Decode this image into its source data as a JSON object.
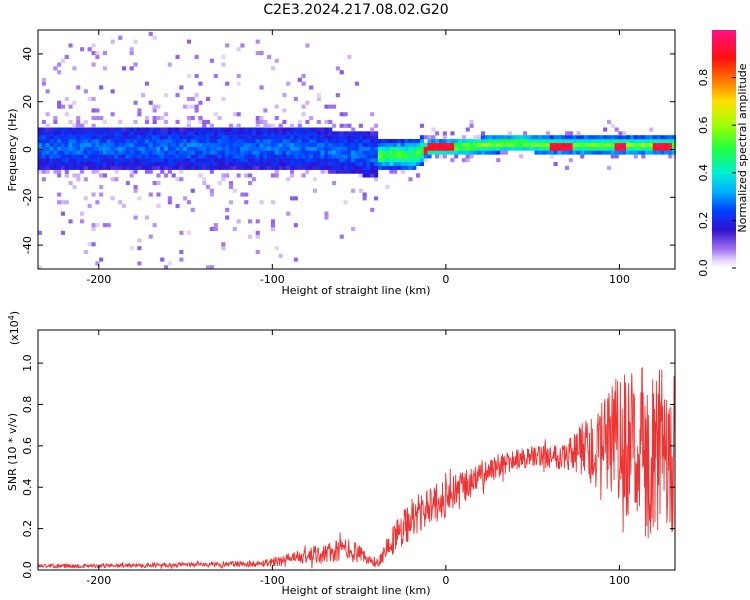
{
  "title": "C2E3.2024.217.08.02.G20",
  "chart_data": [
    {
      "type": "heatmap",
      "xlabel": "Height of straight line (km)",
      "ylabel": "Frequency (Hz)",
      "xlim": [
        -235,
        132
      ],
      "ylim": [
        -50,
        50
      ],
      "xticks": [
        -200,
        -100,
        0,
        100
      ],
      "xtick_labels": [
        "-200",
        "-100",
        "0",
        "100"
      ],
      "yticks": [
        -40,
        -20,
        0,
        20,
        40
      ],
      "ytick_labels": [
        "-40",
        "-20",
        "0",
        "20",
        "40"
      ],
      "colorbar": {
        "label": "Normalized spectral amplitude",
        "range": [
          0,
          1
        ],
        "ticks": [
          0,
          0.2,
          0.4,
          0.6,
          0.8
        ],
        "tick_labels": [
          "0.0",
          "0.2",
          "0.4",
          "0.6",
          "0.8"
        ]
      },
      "band_center_hz": [
        [
          -235,
          0
        ],
        [
          -100,
          0
        ],
        [
          -80,
          0
        ],
        [
          -60,
          -2
        ],
        [
          -40,
          -3
        ],
        [
          -20,
          -3
        ],
        [
          -10,
          0
        ],
        [
          0,
          0
        ],
        [
          20,
          1
        ],
        [
          40,
          2
        ],
        [
          60,
          1
        ],
        [
          80,
          1
        ],
        [
          100,
          1
        ],
        [
          132,
          1
        ]
      ],
      "peak_segments_km": [
        [
          -13,
          3
        ],
        [
          58,
          72
        ],
        [
          95,
          102
        ],
        [
          118,
          128
        ]
      ]
    },
    {
      "type": "line",
      "xlabel": "Height of straight line (km)",
      "ylabel": "SNR (10 * v/v)",
      "y_multiplier": "(x10",
      "y_multiplier_exp": "4",
      "y_multiplier_close": ")",
      "xlim": [
        -235,
        132
      ],
      "ylim": [
        0,
        1.16
      ],
      "xticks": [
        -200,
        -100,
        0,
        100
      ],
      "xtick_labels": [
        "-200",
        "-100",
        "0",
        "100"
      ],
      "yticks": [
        0,
        0.2,
        0.4,
        0.6,
        0.8,
        1.0
      ],
      "ytick_labels": [
        "0.0",
        "0.2",
        "0.4",
        "0.6",
        "0.8",
        "1.0"
      ],
      "series": [
        {
          "color": "#ee3333",
          "x": [
            -235,
            -200,
            -150,
            -110,
            -90,
            -70,
            -55,
            -45,
            -40,
            -30,
            -20,
            -10,
            0,
            10,
            20,
            30,
            40,
            50,
            60,
            70,
            80,
            90,
            100,
            110,
            120,
            132
          ],
          "y": [
            0.02,
            0.02,
            0.025,
            0.03,
            0.05,
            0.08,
            0.1,
            0.05,
            0.03,
            0.15,
            0.25,
            0.3,
            0.35,
            0.4,
            0.46,
            0.5,
            0.53,
            0.55,
            0.55,
            0.56,
            0.58,
            0.6,
            0.6,
            0.58,
            0.56,
            0.55
          ],
          "spread": [
            0.01,
            0.01,
            0.012,
            0.015,
            0.03,
            0.05,
            0.06,
            0.03,
            0.02,
            0.08,
            0.1,
            0.1,
            0.09,
            0.08,
            0.07,
            0.06,
            0.05,
            0.05,
            0.06,
            0.08,
            0.15,
            0.22,
            0.35,
            0.4,
            0.42,
            0.4
          ]
        }
      ]
    }
  ]
}
